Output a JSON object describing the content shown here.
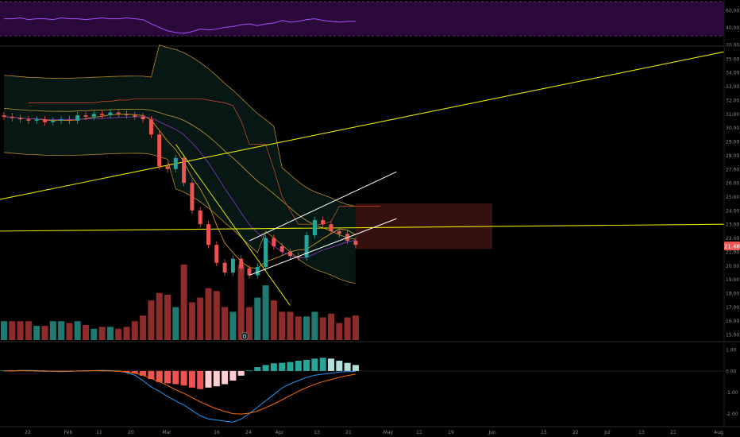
{
  "colors": {
    "background": "#000000",
    "bull": "#26a69a",
    "bear": "#ef5350",
    "volume_bull": "#1f7a72",
    "volume_bear": "#8e2c2c",
    "rsi_line": "#a64dff",
    "rsi_band": "#2a0a3a",
    "trendline": "#e6e600",
    "channel": "#ffffff",
    "bollinger": "#b8892a",
    "cloud": "#3a1210",
    "price_tag": "#ef5350"
  },
  "price_tag": "21.48",
  "event_marker": "D",
  "chart_data": [
    {
      "type": "line",
      "name": "rsi-pane",
      "y_ticks": [
        "60.00",
        "40.00",
        "20.00"
      ],
      "ylim": [
        20,
        70
      ],
      "levels": [
        70,
        30
      ],
      "values": [
        50,
        50,
        51,
        49,
        50,
        50,
        49,
        51,
        50,
        50,
        49,
        50,
        51,
        50,
        50,
        51,
        50,
        49,
        44,
        40,
        36,
        34,
        33,
        35,
        38,
        37,
        38,
        40,
        41,
        43,
        44,
        42,
        44,
        45,
        48,
        46,
        47,
        49,
        50,
        48,
        47,
        46,
        47,
        47
      ]
    },
    {
      "type": "candlestick",
      "name": "price-pane",
      "y_ticks": [
        "35.00",
        "34.00",
        "33.00",
        "32.00",
        "31.00",
        "30.00",
        "29.00",
        "28.00",
        "27.00",
        "26.00",
        "25.00",
        "24.00",
        "23.00",
        "22.00",
        "21.00",
        "20.00",
        "19.00",
        "18.00",
        "17.00",
        "16.00",
        "15.00"
      ],
      "ylim": [
        14.6,
        35.8
      ],
      "x_ticks": [
        "22",
        "Feb",
        "11",
        "20",
        "Mar",
        "16",
        "24",
        "Apr",
        "13",
        "21",
        "May",
        "11",
        "19",
        "Jun",
        "15",
        "22",
        "Jul",
        "13",
        "21",
        "Aug"
      ],
      "close": [
        30.8,
        30.7,
        30.6,
        30.5,
        30.6,
        30.4,
        30.5,
        30.6,
        30.5,
        30.9,
        30.8,
        31.0,
        30.9,
        31.1,
        31.0,
        30.9,
        30.8,
        30.6,
        29.5,
        27.2,
        27.0,
        27.8,
        26.0,
        24.0,
        23.0,
        21.5,
        20.2,
        19.5,
        20.5,
        19.8,
        19.3,
        19.9,
        22.0,
        21.4,
        21.0,
        20.7,
        20.6,
        22.2,
        23.3,
        23.0,
        22.5,
        22.3,
        21.8,
        21.5
      ],
      "volume": [
        2.0,
        2.0,
        2.0,
        2.0,
        1.5,
        1.5,
        2.0,
        2.0,
        1.8,
        2.0,
        1.6,
        1.2,
        1.4,
        1.4,
        1.2,
        1.4,
        2.0,
        2.6,
        4.2,
        5.0,
        4.8,
        3.5,
        8.0,
        4.0,
        4.5,
        5.5,
        5.2,
        3.5,
        3.0,
        8.0,
        3.5,
        4.5,
        5.8,
        4.2,
        3.0,
        3.0,
        2.5,
        2.5,
        3.0,
        2.4,
        2.8,
        1.8,
        2.4,
        2.6
      ],
      "trend_levels": [
        {
          "from": 24.8,
          "to": 35.5
        },
        {
          "from": 22.5,
          "to": 23.0
        }
      ]
    },
    {
      "type": "bar",
      "name": "macd-pane",
      "y_ticks": [
        "1.00",
        "0.00",
        "-1.00",
        "-2.00"
      ],
      "ylim": [
        -2.5,
        1.3
      ],
      "histogram": [
        0.02,
        0.03,
        0.04,
        0.02,
        0.01,
        0.0,
        -0.02,
        -0.03,
        -0.02,
        0.01,
        0.02,
        0.03,
        0.02,
        0.02,
        0.0,
        -0.05,
        -0.12,
        -0.22,
        -0.38,
        -0.52,
        -0.58,
        -0.62,
        -0.68,
        -0.78,
        -0.85,
        -0.78,
        -0.72,
        -0.62,
        -0.45,
        -0.22,
        0.02,
        0.18,
        0.28,
        0.36,
        0.38,
        0.42,
        0.48,
        0.52,
        0.58,
        0.62,
        0.58,
        0.48,
        0.38,
        0.28
      ],
      "macd": [
        0.0,
        0.0,
        0.02,
        0.03,
        0.02,
        0.0,
        -0.02,
        -0.03,
        -0.02,
        0.0,
        0.01,
        0.02,
        0.03,
        0.02,
        0.0,
        -0.08,
        -0.2,
        -0.45,
        -0.75,
        -0.95,
        -1.2,
        -1.4,
        -1.6,
        -1.85,
        -2.1,
        -2.25,
        -2.3,
        -2.35,
        -2.4,
        -2.25,
        -2.0,
        -1.7,
        -1.4,
        -1.1,
        -0.8,
        -0.6,
        -0.45,
        -0.3,
        -0.2,
        -0.15,
        -0.1,
        -0.05,
        -0.03,
        -0.02
      ],
      "signal": [
        0.0,
        0.0,
        0.01,
        0.01,
        0.0,
        0.0,
        -0.01,
        -0.01,
        -0.01,
        0.0,
        0.0,
        0.01,
        0.01,
        0.0,
        -0.01,
        -0.05,
        -0.1,
        -0.2,
        -0.35,
        -0.5,
        -0.68,
        -0.88,
        -1.05,
        -1.25,
        -1.45,
        -1.62,
        -1.78,
        -1.9,
        -2.0,
        -2.02,
        -1.98,
        -1.88,
        -1.72,
        -1.55,
        -1.35,
        -1.15,
        -0.95,
        -0.78,
        -0.62,
        -0.5,
        -0.4,
        -0.3,
        -0.22,
        -0.15
      ]
    }
  ]
}
